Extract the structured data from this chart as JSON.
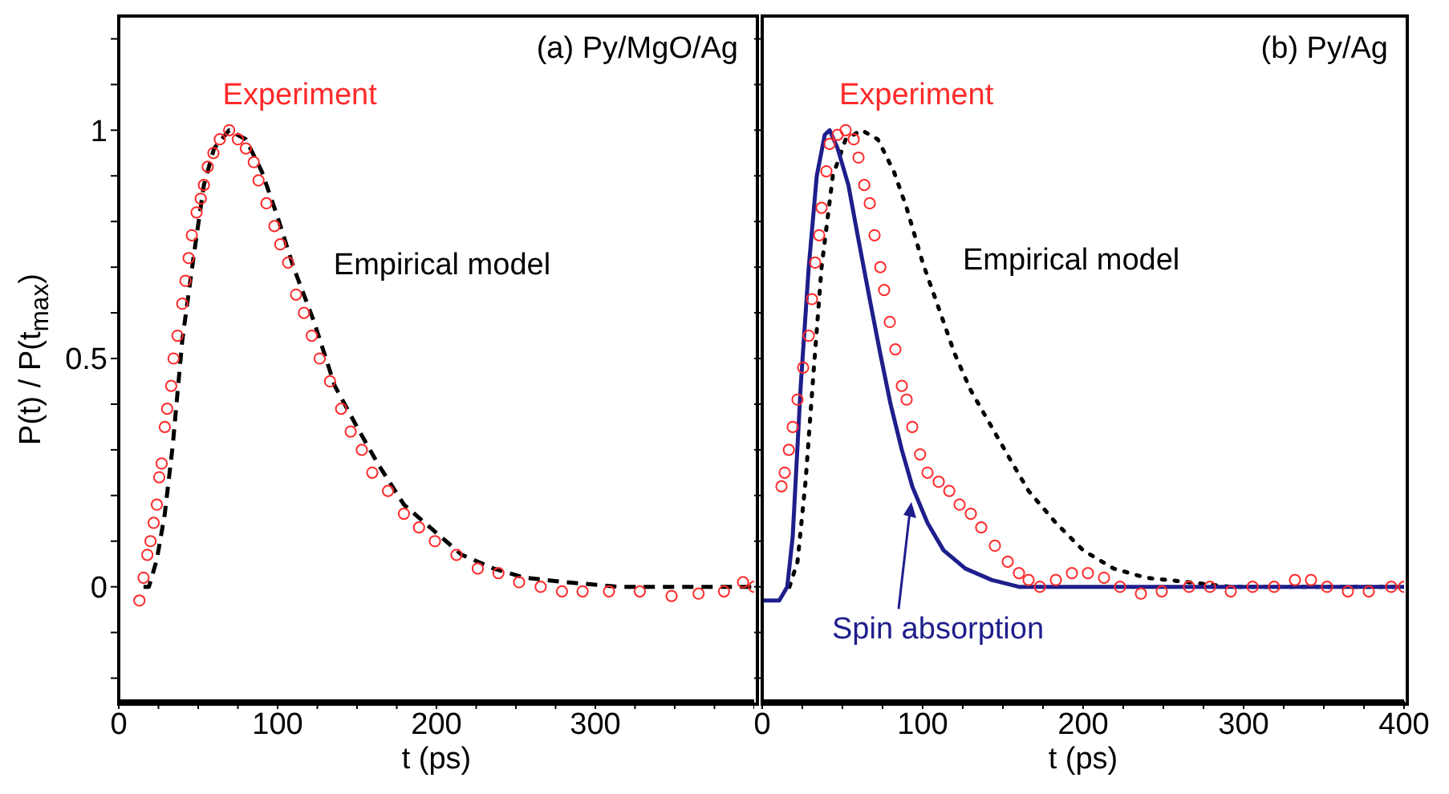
{
  "chart_data": [
    {
      "type": "line",
      "title": "(a) Py/MgO/Ag",
      "xlabel": "t (ps)",
      "ylabel": "P(t) / P(t$_{max}$)",
      "xlim": [
        0,
        400
      ],
      "ylim": [
        -0.25,
        1.25
      ],
      "xticks": [
        0,
        {
          "value": 25,
          "label": null
        },
        {
          "value": 50,
          "label": null
        },
        {
          "value": 75,
          "label": null
        },
        100,
        {
          "value": 125,
          "label": null
        },
        {
          "value": 150,
          "label": null
        },
        {
          "value": 175,
          "label": null
        },
        200,
        {
          "value": 225,
          "label": null
        },
        {
          "value": 250,
          "label": null
        },
        {
          "value": 275,
          "label": null
        },
        300,
        {
          "value": 325,
          "label": null
        },
        {
          "value": 350,
          "label": null
        },
        {
          "value": 375,
          "label": null
        },
        {
          "value": 400,
          "label": null
        }
      ],
      "yticks": [
        {
          "value": -0.2,
          "label": null
        },
        {
          "value": -0.1,
          "label": null
        },
        0,
        {
          "value": 0.1,
          "label": null
        },
        {
          "value": 0.2,
          "label": null
        },
        {
          "value": 0.3,
          "label": null
        },
        {
          "value": 0.4,
          "label": null
        },
        0.5,
        {
          "value": 0.6,
          "label": null
        },
        {
          "value": 0.7,
          "label": null
        },
        {
          "value": 0.8,
          "label": null
        },
        {
          "value": 0.9,
          "label": null
        },
        1,
        {
          "value": 1.1,
          "label": null
        },
        {
          "value": 1.2,
          "label": null
        }
      ],
      "grid": false,
      "legend": false,
      "series": [
        {
          "name": "Experiment",
          "type": "scatter",
          "marker": "circle",
          "color": "#ff2a2a",
          "x": [
            13,
            15.6,
            18,
            20,
            22,
            24,
            25.5,
            27,
            29,
            30.5,
            33,
            34.5,
            37,
            40,
            42,
            44,
            46,
            49,
            51.6,
            53.6,
            56,
            59.6,
            63.6,
            69.5,
            75,
            80,
            85,
            88,
            93,
            98,
            101.7,
            106.6,
            111.6,
            116.6,
            121.5,
            126.5,
            133,
            140,
            146,
            153,
            159.6,
            169.5,
            179.5,
            189,
            199,
            212.6,
            226,
            239,
            252,
            265.6,
            279,
            292,
            308.6,
            328,
            348,
            365,
            381,
            393,
            400
          ],
          "values": [
            -0.03,
            0.02,
            0.07,
            0.1,
            0.14,
            0.18,
            0.24,
            0.27,
            0.35,
            0.39,
            0.44,
            0.5,
            0.55,
            0.62,
            0.67,
            0.72,
            0.77,
            0.82,
            0.85,
            0.88,
            0.92,
            0.95,
            0.98,
            1.0,
            0.98,
            0.96,
            0.93,
            0.89,
            0.84,
            0.79,
            0.75,
            0.71,
            0.64,
            0.6,
            0.55,
            0.5,
            0.45,
            0.39,
            0.34,
            0.3,
            0.25,
            0.21,
            0.16,
            0.13,
            0.1,
            0.07,
            0.04,
            0.03,
            0.01,
            0.0,
            -0.01,
            -0.01,
            -0.01,
            -0.01,
            -0.02,
            -0.015,
            -0.01,
            0.01,
            0.0
          ]
        },
        {
          "name": "Empirical model",
          "marker": "none",
          "line_style": "dashed",
          "color": "#000000",
          "x": [
            15.6,
            19,
            24,
            29,
            34,
            40,
            47,
            53.6,
            60,
            69.5,
            80,
            90,
            100,
            110,
            123,
            136,
            150,
            163,
            179.5,
            196,
            216,
            236,
            255.6,
            282,
            315,
            400
          ],
          "values": [
            0,
            0,
            0.06,
            0.16,
            0.31,
            0.54,
            0.72,
            0.88,
            0.96,
            1.0,
            0.98,
            0.91,
            0.81,
            0.7,
            0.58,
            0.44,
            0.35,
            0.27,
            0.18,
            0.13,
            0.07,
            0.04,
            0.02,
            0.01,
            0,
            0
          ]
        }
      ]
    },
    {
      "type": "line",
      "title": "(b) Py/Ag",
      "xlabel": "t (ps)",
      "xlim": [
        0,
        400
      ],
      "ylim": [
        -0.25,
        1.25
      ],
      "tick_labels": "x",
      "xticks": [
        0,
        {
          "value": 25,
          "label": null
        },
        {
          "value": 50,
          "label": null
        },
        {
          "value": 75,
          "label": null
        },
        100,
        {
          "value": 125,
          "label": null
        },
        {
          "value": 150,
          "label": null
        },
        {
          "value": 175,
          "label": null
        },
        200,
        {
          "value": 225,
          "label": null
        },
        {
          "value": 250,
          "label": null
        },
        {
          "value": 275,
          "label": null
        },
        300,
        {
          "value": 325,
          "label": null
        },
        {
          "value": 350,
          "label": null
        },
        {
          "value": 375,
          "label": null
        },
        400
      ],
      "yticks": [
        {
          "value": -0.2,
          "label": null
        },
        {
          "value": -0.1,
          "label": null
        },
        0,
        {
          "value": 0.1,
          "label": null
        },
        {
          "value": 0.2,
          "label": null
        },
        {
          "value": 0.3,
          "label": null
        },
        {
          "value": 0.4,
          "label": null
        },
        0.5,
        {
          "value": 0.6,
          "label": null
        },
        {
          "value": 0.7,
          "label": null
        },
        {
          "value": 0.8,
          "label": null
        },
        {
          "value": 0.9,
          "label": null
        },
        1,
        {
          "value": 1.1,
          "label": null
        },
        {
          "value": 1.2,
          "label": null
        }
      ],
      "grid": false,
      "legend": false,
      "series": [
        {
          "name": "Experiment",
          "type": "scatter",
          "marker": "circle",
          "color": "#ff2a2a",
          "x": [
            12,
            14,
            16.6,
            19,
            22,
            25.5,
            29,
            31,
            33,
            35.5,
            37,
            40,
            42,
            47,
            52,
            57,
            60,
            63.6,
            67,
            70,
            73.6,
            76,
            79.5,
            83,
            87,
            90,
            93.5,
            98.4,
            103,
            110,
            116.6,
            123,
            130,
            136.5,
            145,
            153,
            160,
            166,
            173,
            183,
            193,
            203,
            213,
            223,
            236,
            249,
            266,
            279,
            292,
            305.6,
            319,
            332,
            342,
            352,
            365,
            378,
            392,
            400
          ],
          "values": [
            0.22,
            0.25,
            0.3,
            0.35,
            0.41,
            0.48,
            0.55,
            0.63,
            0.71,
            0.77,
            0.83,
            0.91,
            0.97,
            0.99,
            1.0,
            0.98,
            0.94,
            0.88,
            0.84,
            0.77,
            0.7,
            0.65,
            0.58,
            0.52,
            0.44,
            0.41,
            0.35,
            0.29,
            0.25,
            0.23,
            0.21,
            0.18,
            0.16,
            0.13,
            0.09,
            0.055,
            0.03,
            0.015,
            0.0,
            0.015,
            0.03,
            0.03,
            0.02,
            0.0,
            -0.015,
            -0.01,
            0,
            0,
            -0.01,
            0,
            0,
            0.015,
            0.015,
            0,
            -0.01,
            -0.01,
            0,
            0
          ]
        },
        {
          "name": "Empirical model",
          "marker": "none",
          "line_style": "dotted",
          "color": "#000000",
          "x": [
            17,
            22,
            27,
            32,
            37,
            44,
            52,
            62,
            72,
            82,
            90,
            100,
            110,
            120,
            130,
            143,
            156,
            166,
            183,
            200,
            219,
            239,
            266,
            292,
            400
          ],
          "values": [
            0,
            0.055,
            0.23,
            0.47,
            0.7,
            0.9,
            0.98,
            1.0,
            0.98,
            0.91,
            0.83,
            0.71,
            0.61,
            0.51,
            0.43,
            0.35,
            0.27,
            0.21,
            0.14,
            0.08,
            0.04,
            0.02,
            0.01,
            0,
            0
          ]
        },
        {
          "name": "Spin absorption",
          "marker": "none",
          "line_style": "solid",
          "color": "#1e1e8c",
          "x": [
            0,
            10.6,
            15.6,
            19,
            24,
            29,
            34,
            39,
            42,
            47,
            53.7,
            60,
            67,
            73.6,
            80,
            87,
            93.5,
            103,
            113,
            126.6,
            143,
            160,
            193,
            400
          ],
          "values": [
            -0.03,
            -0.03,
            0,
            0.11,
            0.44,
            0.7,
            0.9,
            0.99,
            1.0,
            0.96,
            0.88,
            0.76,
            0.63,
            0.51,
            0.4,
            0.3,
            0.22,
            0.14,
            0.08,
            0.04,
            0.015,
            0,
            0,
            0
          ]
        }
      ]
    }
  ]
}
